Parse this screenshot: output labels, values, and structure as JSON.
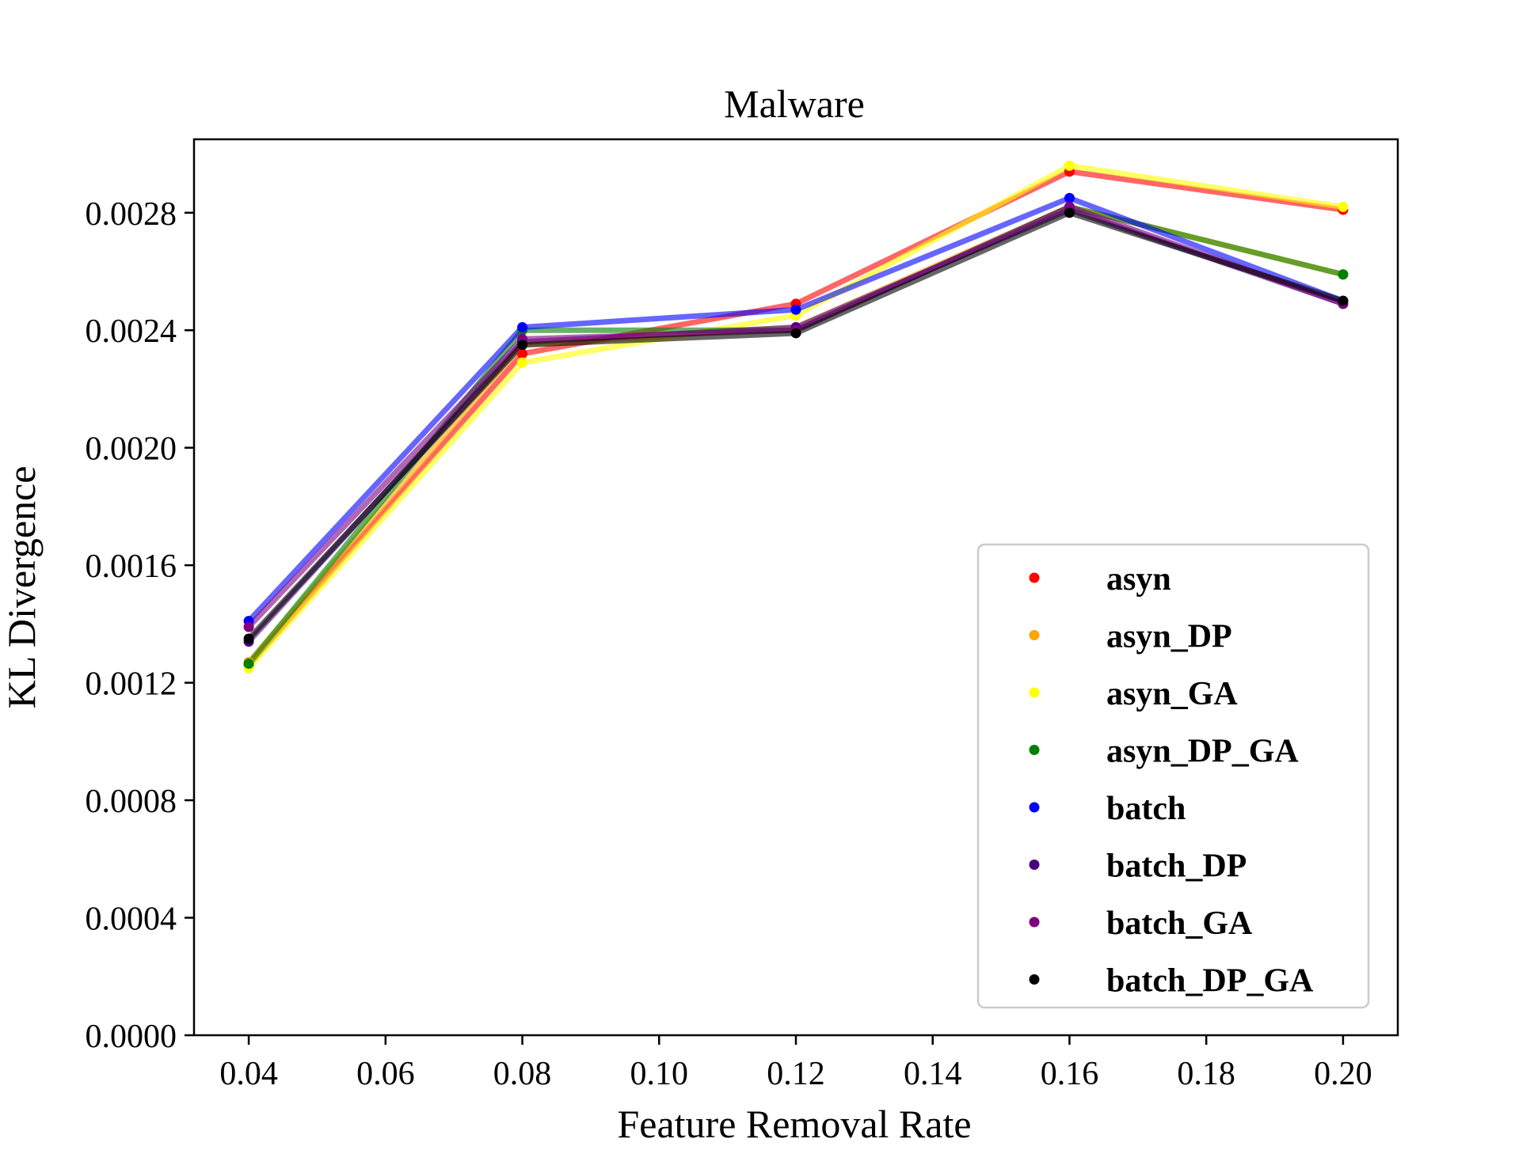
{
  "chart_data": {
    "type": "line",
    "title": "Malware",
    "xlabel": "Feature Removal Rate",
    "ylabel": "KL Divergence",
    "x": [
      0.04,
      0.08,
      0.12,
      0.16,
      0.2
    ],
    "xlim": [
      0.032,
      0.208
    ],
    "ylim": [
      0.0,
      0.00305
    ],
    "xticks": [
      0.04,
      0.06,
      0.08,
      0.1,
      0.12,
      0.14,
      0.16,
      0.18,
      0.2
    ],
    "xtick_labels": [
      "0.04",
      "0.06",
      "0.08",
      "0.10",
      "0.12",
      "0.14",
      "0.16",
      "0.18",
      "0.20"
    ],
    "yticks": [
      0.0,
      0.0004,
      0.0008,
      0.0012,
      0.0016,
      0.002,
      0.0024,
      0.0028
    ],
    "ytick_labels": [
      "0.0000",
      "0.0004",
      "0.0008",
      "0.0012",
      "0.0016",
      "0.0020",
      "0.0024",
      "0.0028"
    ],
    "grid": false,
    "legend_position": "lower-right",
    "series": [
      {
        "name": "asyn",
        "color": "#ff0000",
        "values": [
          0.00126,
          0.00232,
          0.00249,
          0.00294,
          0.00281
        ]
      },
      {
        "name": "asyn_DP",
        "color": "#ffa500",
        "values": [
          0.00127,
          0.00235,
          0.00241,
          0.00282,
          0.00259
        ]
      },
      {
        "name": "asyn_GA",
        "color": "#ffff00",
        "values": [
          0.00125,
          0.00229,
          0.00245,
          0.00296,
          0.00282
        ]
      },
      {
        "name": "asyn_DP_GA",
        "color": "#008000",
        "values": [
          0.001265,
          0.0024,
          0.0024,
          0.00282,
          0.00259
        ]
      },
      {
        "name": "batch",
        "color": "#0000ff",
        "values": [
          0.00141,
          0.00241,
          0.00247,
          0.00285,
          0.0025
        ]
      },
      {
        "name": "batch_DP",
        "color": "#4b0082",
        "values": [
          0.00134,
          0.00236,
          0.00241,
          0.00281,
          0.00249
        ]
      },
      {
        "name": "batch_GA",
        "color": "#800080",
        "values": [
          0.00139,
          0.00237,
          0.0024,
          0.00282,
          0.00249
        ]
      },
      {
        "name": "batch_DP_GA",
        "color": "#000000",
        "values": [
          0.00135,
          0.00235,
          0.00239,
          0.0028,
          0.0025
        ]
      }
    ]
  }
}
